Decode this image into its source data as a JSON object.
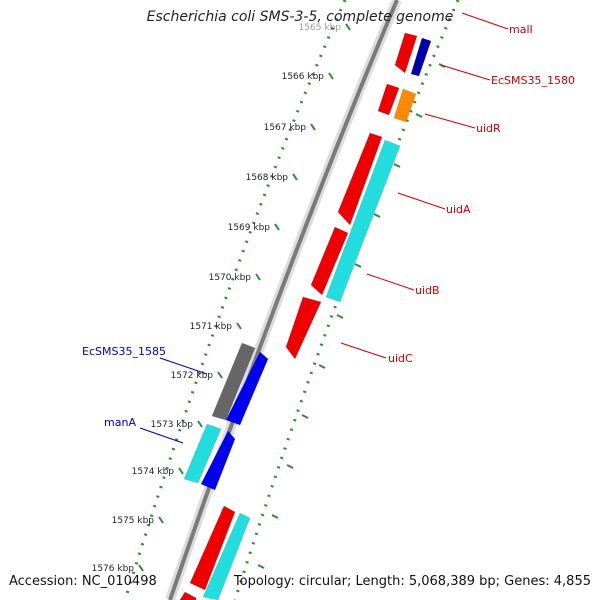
{
  "title": "Escherichia coli SMS-3-5, complete genome",
  "footer": {
    "accession": "Accession: NC_010498",
    "summary": "Topology: circular; Length: 5,068,389 bp; Genes: 4,855"
  },
  "colors": {
    "forward_label": "#cc0000",
    "reverse_label": "#0000aa",
    "tick_ring": "#2e8b2e",
    "backbone": "#888888",
    "red": "#ee0000",
    "cyan": "#22dddd",
    "blue": "#0000ee",
    "dark_blue": "#0000aa",
    "gray": "#666666",
    "orange": "#ff8800"
  },
  "ticks": [
    {
      "label": "1565 kbp"
    },
    {
      "label": "1566 kbp"
    },
    {
      "label": "1567 kbp"
    },
    {
      "label": "1568 kbp"
    },
    {
      "label": "1569 kbp"
    },
    {
      "label": "1570 kbp"
    },
    {
      "label": "1571 kbp"
    },
    {
      "label": "1572 kbp"
    },
    {
      "label": "1573 kbp"
    },
    {
      "label": "1574 kbp"
    },
    {
      "label": "1575 kbp"
    },
    {
      "label": "1576 kbp"
    }
  ],
  "labels": [
    {
      "text": "malI",
      "strand": "forward"
    },
    {
      "text": "EcSMS35_1580",
      "strand": "forward"
    },
    {
      "text": "uidR",
      "strand": "forward"
    },
    {
      "text": "uidA",
      "strand": "forward"
    },
    {
      "text": "uidB",
      "strand": "forward"
    },
    {
      "text": "uidC",
      "strand": "forward"
    },
    {
      "text": "EcSMS35_1585",
      "strand": "reverse"
    },
    {
      "text": "manA",
      "strand": "reverse"
    }
  ],
  "genes": [
    {
      "color": "red",
      "strand": "forward"
    },
    {
      "color": "dark_blue",
      "strand": "forward"
    },
    {
      "color": "red",
      "strand": "forward"
    },
    {
      "color": "orange",
      "strand": "forward"
    },
    {
      "color": "red",
      "strand": "forward"
    },
    {
      "color": "red",
      "strand": "forward"
    },
    {
      "color": "cyan",
      "strand": "forward"
    },
    {
      "color": "red",
      "strand": "forward"
    },
    {
      "color": "gray",
      "strand": "reverse"
    },
    {
      "color": "blue",
      "strand": "reverse"
    },
    {
      "color": "cyan",
      "strand": "reverse"
    },
    {
      "color": "blue",
      "strand": "reverse"
    },
    {
      "color": "red",
      "strand": "forward"
    },
    {
      "color": "cyan",
      "strand": "forward"
    },
    {
      "color": "red",
      "strand": "forward"
    }
  ]
}
